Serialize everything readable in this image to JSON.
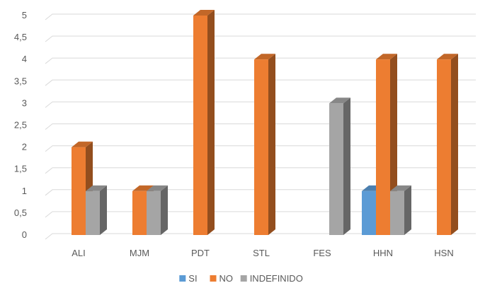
{
  "chart_data": {
    "type": "bar",
    "style": "3d-clustered-column",
    "categories": [
      "ALI",
      "MJM",
      "PDT",
      "STL",
      "FES",
      "HHN",
      "HSN"
    ],
    "series": [
      {
        "name": "SI",
        "color": "#5B9BD5",
        "values": [
          0,
          0,
          0,
          0,
          0,
          1,
          0
        ]
      },
      {
        "name": "NO",
        "color": "#ED7D31",
        "values": [
          2,
          1,
          5,
          4,
          0,
          4,
          4
        ]
      },
      {
        "name": "INDEFINIDO",
        "color": "#A5A5A5",
        "values": [
          1,
          1,
          0,
          0,
          3,
          1,
          0
        ]
      }
    ],
    "ylim": [
      0,
      5
    ],
    "y_ticks": [
      "0",
      "0,5",
      "1",
      "1,5",
      "2",
      "2,5",
      "3",
      "3,5",
      "4",
      "4,5",
      "5"
    ],
    "title": "",
    "xlabel": "",
    "ylabel": "",
    "grid": true,
    "legend_position": "bottom"
  }
}
